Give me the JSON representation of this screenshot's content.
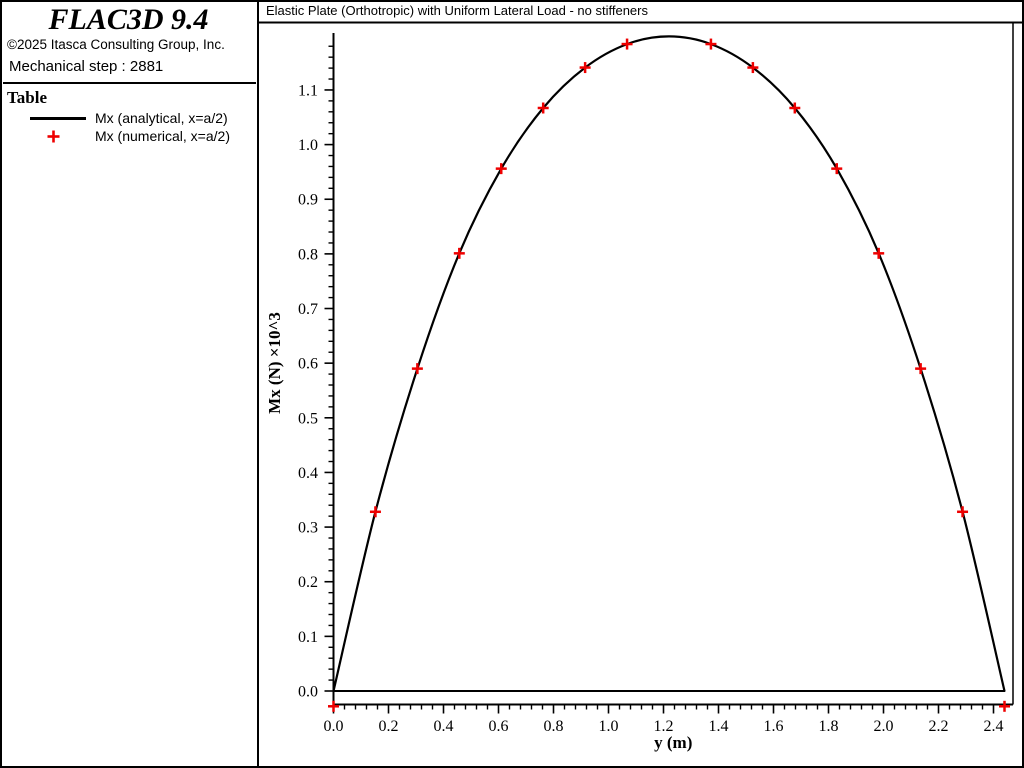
{
  "window": {
    "app_logo": "FLAC3D 9.4",
    "copyright": "©2025 Itasca Consulting Group, Inc.",
    "step_label": "Mechanical step : 2881"
  },
  "legend": {
    "title": "Table",
    "items": [
      {
        "label": "Mx (analytical, x=a/2)",
        "marker": "line",
        "color": "#000000"
      },
      {
        "label": "Mx (numerical, x=a/2)",
        "marker": "plus",
        "color": "#ee0000"
      }
    ]
  },
  "chart_data": {
    "type": "line",
    "title": "Elastic Plate (Orthotropic) with Uniform Lateral Load - no stiffeners",
    "xlabel": "y (m)",
    "ylabel": "Mx (N) ×10^3",
    "xlim": [
      0,
      2.47
    ],
    "ylim": [
      -0.035,
      1.205
    ],
    "grid": false,
    "legend_position": "left-sidebar",
    "x_ticks": [
      0.0,
      0.2,
      0.4,
      0.6,
      0.8,
      1.0,
      1.2,
      1.4,
      1.6,
      1.8,
      2.0,
      2.2,
      2.4
    ],
    "y_ticks": [
      0.0,
      0.1,
      0.2,
      0.3,
      0.4,
      0.5,
      0.6,
      0.7,
      0.8,
      0.9,
      1.0,
      1.1
    ],
    "x_minor_step": 0.04,
    "y_minor_step": 0.02,
    "zero_line": {
      "y": 0,
      "x_from": 0,
      "x_to": 2.443
    },
    "series": [
      {
        "name": "Mx (analytical, x=a/2)",
        "style": "line",
        "color": "#000000",
        "x": [
          0,
          0.1525,
          0.305,
          0.4575,
          0.61,
          0.7625,
          0.915,
          1.0675,
          1.22,
          1.3725,
          1.525,
          1.6775,
          1.83,
          1.9825,
          2.135,
          2.2875,
          2.44
        ],
        "y": [
          0,
          0.328,
          0.59,
          0.801,
          0.956,
          1.067,
          1.141,
          1.184,
          1.198,
          1.184,
          1.141,
          1.067,
          0.956,
          0.801,
          0.59,
          0.328,
          0
        ]
      },
      {
        "name": "Mx (numerical, x=a/2)",
        "style": "plus-markers",
        "color": "#ee0000",
        "x": [
          0,
          0.1525,
          0.305,
          0.4575,
          0.61,
          0.7625,
          0.915,
          1.0675,
          1.3725,
          1.525,
          1.6775,
          1.83,
          1.9825,
          2.135,
          2.2875,
          2.44
        ],
        "y": [
          -0.028,
          0.328,
          0.59,
          0.801,
          0.956,
          1.067,
          1.141,
          1.184,
          1.184,
          1.141,
          1.067,
          0.956,
          0.801,
          0.59,
          0.328,
          -0.028
        ]
      }
    ]
  }
}
